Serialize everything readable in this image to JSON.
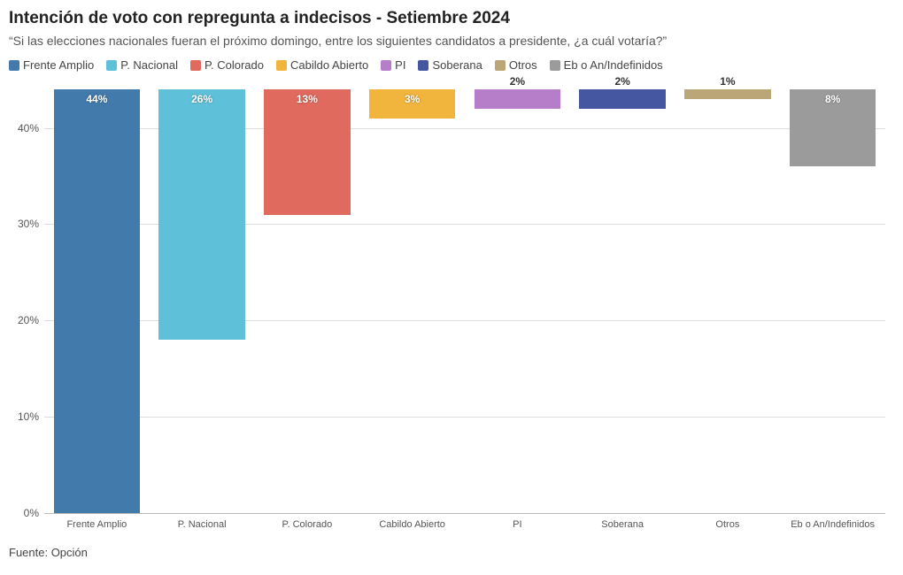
{
  "title": "Intención de voto con repregunta a indecisos - Setiembre 2024",
  "subtitle": "“Si las elecciones nacionales fueran el próximo domingo, entre los siguientes candidatos a presidente, ¿a cuál votaría?”",
  "source": "Fuente: Opción",
  "chart": {
    "type": "bar",
    "ylim": [
      0,
      44
    ],
    "yticks": [
      0,
      10,
      20,
      30,
      40
    ],
    "ytick_labels": [
      "0%",
      "10%",
      "20%",
      "30%",
      "40%"
    ],
    "background_color": "#ffffff",
    "grid_color": "#dddddd",
    "axis_color": "#bbbbbb",
    "bar_width_pct": 82,
    "label_fontsize": 12,
    "title_fontsize": 19,
    "series": [
      {
        "name": "Frente Amplio",
        "value": 44,
        "label": "44%",
        "color": "#427aac",
        "label_style": "light"
      },
      {
        "name": "P. Nacional",
        "value": 26,
        "label": "26%",
        "color": "#5fc1d9",
        "label_style": "light"
      },
      {
        "name": "P. Colorado",
        "value": 13,
        "label": "13%",
        "color": "#e16a5e",
        "label_style": "light"
      },
      {
        "name": "Cabildo Abierto",
        "value": 3,
        "label": "3%",
        "color": "#f1b53e",
        "label_style": "light"
      },
      {
        "name": "PI",
        "value": 2,
        "label": "2%",
        "color": "#b67dc9",
        "label_style": "dark"
      },
      {
        "name": "Soberana",
        "value": 2,
        "label": "2%",
        "color": "#4657a1",
        "label_style": "dark"
      },
      {
        "name": "Otros",
        "value": 1,
        "label": "1%",
        "color": "#bba678",
        "label_style": "dark"
      },
      {
        "name": "Eb o An/Indefinidos",
        "value": 8,
        "label": "8%",
        "color": "#9b9b9b",
        "label_style": "light"
      }
    ]
  }
}
